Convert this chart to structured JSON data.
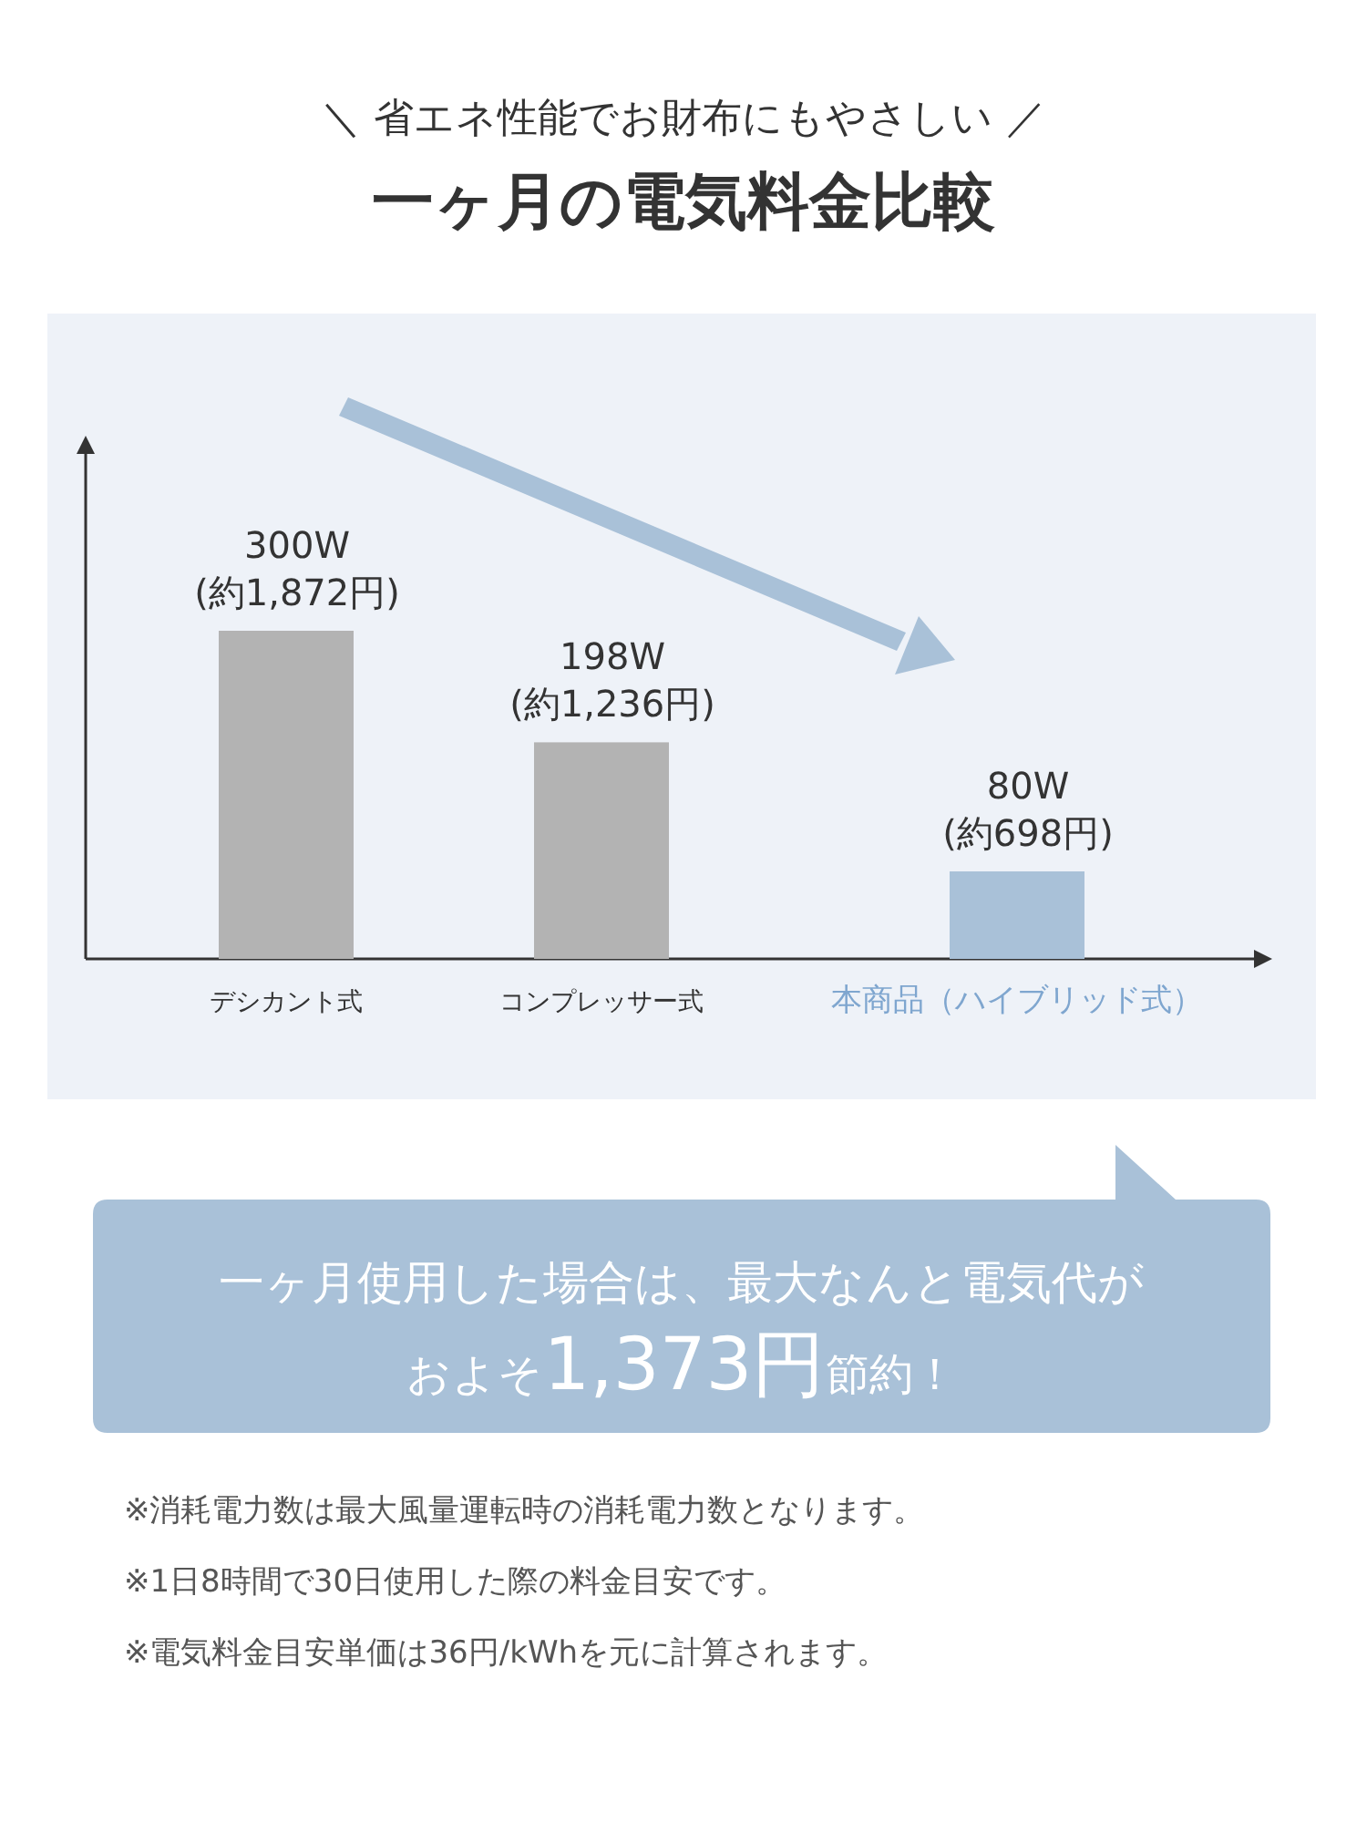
{
  "chart_data": {
    "type": "bar",
    "subtitle": "＼ 省エネ性能でお財布にもやさしい ／",
    "title": "一ヶ月の電気料金比較",
    "categories": [
      "デシカント式",
      "コンプレッサー式",
      "本商品（ハイブリッド式）"
    ],
    "values": [
      300,
      198,
      80
    ],
    "value_labels": [
      "300W\n(約1,872円)",
      "198W\n(約1,236円)",
      "80W\n(約698円)"
    ],
    "colors": [
      "#b3b3b3",
      "#b3b3b3",
      "#a9c1d8"
    ],
    "annotations": [
      "一ヶ月使用した場合は、最大なんと電気代が",
      "およそ1,373円節約！",
      "※消耗電力数は最大風量運転時の消耗電力数となります。",
      "※1日8時間で30日使用した際の料金目安です。",
      "※電気料金目安単価は36円/kWhを元に計算されます。"
    ]
  }
}
